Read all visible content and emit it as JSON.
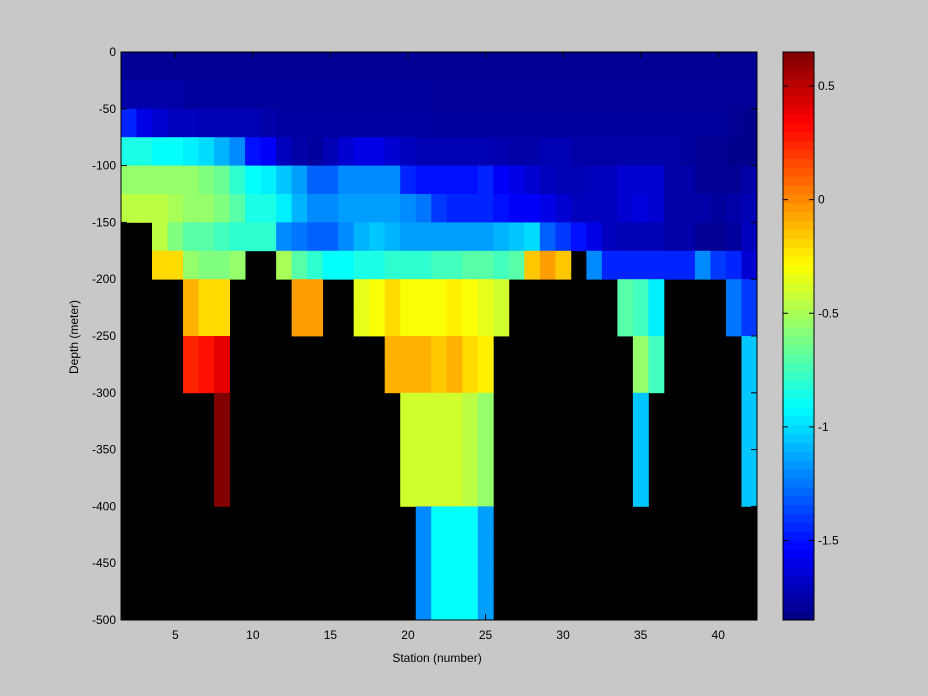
{
  "chart_data": {
    "type": "heatmap",
    "xlabel": "Station (number)",
    "ylabel": "Depth (meter)",
    "xlim": [
      1.5,
      42.5
    ],
    "ylim": [
      -500,
      0
    ],
    "x_ticks": [
      5,
      10,
      15,
      20,
      25,
      30,
      35,
      40
    ],
    "y_ticks": [
      0,
      -50,
      -100,
      -150,
      -200,
      -250,
      -300,
      -350,
      -400,
      -450,
      -500
    ],
    "colormap": "jet",
    "color_range": [
      -1.85,
      0.65
    ],
    "colorbar_ticks": [
      0.5,
      0,
      -0.5,
      -1,
      -1.5
    ],
    "background_color": "#000000",
    "stations_start": 2,
    "depth_bins": [
      0,
      -25,
      -50,
      -75,
      -100,
      -125,
      -150,
      -175,
      -200,
      -225,
      -250,
      -275,
      -300,
      -325,
      -350,
      -375,
      -400,
      -425,
      -450,
      -475
    ],
    "depth_bin_size": 25,
    "station_profiles": [
      {
        "station": 2,
        "values": [
          -1.8,
          -1.75,
          -1.45,
          -0.85,
          -0.55,
          -0.45
        ]
      },
      {
        "station": 3,
        "values": [
          -1.8,
          -1.75,
          -1.6,
          -0.85,
          -0.55,
          -0.45
        ]
      },
      {
        "station": 4,
        "values": [
          -1.8,
          -1.75,
          -1.65,
          -0.9,
          -0.55,
          -0.45,
          -0.45,
          -0.2
        ]
      },
      {
        "station": 5,
        "values": [
          -1.8,
          -1.75,
          -1.7,
          -0.9,
          -0.55,
          -0.5,
          -0.6,
          -0.2
        ]
      },
      {
        "station": 6,
        "values": [
          -1.8,
          -1.78,
          -1.7,
          -0.95,
          -0.55,
          -0.55,
          -0.7,
          -0.55,
          -0.1,
          -0.1,
          0.25,
          0.25
        ]
      },
      {
        "station": 7,
        "values": [
          -1.8,
          -1.78,
          -1.72,
          -1.0,
          -0.6,
          -0.55,
          -0.7,
          -0.6,
          -0.2,
          -0.2,
          0.3,
          0.3
        ]
      },
      {
        "station": 8,
        "values": [
          -1.8,
          -1.78,
          -1.72,
          -1.1,
          -0.65,
          -0.6,
          -0.75,
          -0.6,
          -0.2,
          -0.2,
          0.4,
          0.4,
          0.65,
          0.65,
          0.65,
          0.65
        ]
      },
      {
        "station": 9,
        "values": [
          -1.8,
          -1.78,
          -1.72,
          -1.2,
          -0.8,
          -0.7,
          -0.8,
          -0.55
        ]
      },
      {
        "station": 10,
        "values": [
          -1.8,
          -1.78,
          -1.72,
          -1.5,
          -0.9,
          -0.85,
          -0.8
        ]
      },
      {
        "station": 11,
        "values": [
          -1.8,
          -1.78,
          -1.75,
          -1.55,
          -0.95,
          -0.85,
          -0.8
        ]
      },
      {
        "station": 12,
        "values": [
          -1.8,
          -1.78,
          -1.77,
          -1.7,
          -1.05,
          -0.95,
          -1.2,
          -0.5
        ]
      },
      {
        "station": 13,
        "values": [
          -1.8,
          -1.78,
          -1.77,
          -1.75,
          -1.15,
          -1.1,
          -1.25,
          -0.7,
          -0.05,
          -0.05
        ]
      },
      {
        "station": 14,
        "values": [
          -1.8,
          -1.78,
          -1.77,
          -1.78,
          -1.3,
          -1.2,
          -1.3,
          -0.8,
          -0.05,
          -0.05
        ]
      },
      {
        "station": 15,
        "values": [
          -1.8,
          -1.78,
          -1.77,
          -1.72,
          -1.3,
          -1.2,
          -1.3,
          -0.9
        ]
      },
      {
        "station": 16,
        "values": [
          -1.8,
          -1.78,
          -1.77,
          -1.65,
          -1.2,
          -1.15,
          -1.2,
          -0.9
        ]
      },
      {
        "station": 17,
        "values": [
          -1.8,
          -1.78,
          -1.77,
          -1.6,
          -1.2,
          -1.15,
          -1.1,
          -0.85,
          -0.35,
          -0.35
        ]
      },
      {
        "station": 18,
        "values": [
          -1.8,
          -1.78,
          -1.77,
          -1.6,
          -1.2,
          -1.15,
          -1.05,
          -0.85,
          -0.3,
          -0.3
        ]
      },
      {
        "station": 19,
        "values": [
          -1.8,
          -1.78,
          -1.77,
          -1.65,
          -1.2,
          -1.15,
          -1.1,
          -0.8,
          -0.2,
          -0.2,
          -0.1,
          -0.1
        ]
      },
      {
        "station": 20,
        "values": [
          -1.8,
          -1.78,
          -1.77,
          -1.7,
          -1.45,
          -1.2,
          -1.15,
          -0.8,
          -0.3,
          -0.3,
          -0.1,
          -0.1,
          -0.4,
          -0.4,
          -0.4,
          -0.4
        ]
      },
      {
        "station": 21,
        "values": [
          -1.8,
          -1.78,
          -1.77,
          -1.72,
          -1.5,
          -1.25,
          -1.15,
          -0.8,
          -0.3,
          -0.3,
          -0.1,
          -0.1,
          -0.4,
          -0.4,
          -0.4,
          -0.4,
          -1.2,
          -1.2,
          -1.2,
          -1.2
        ]
      },
      {
        "station": 22,
        "values": [
          -1.8,
          -1.79,
          -1.78,
          -1.72,
          -1.5,
          -1.4,
          -1.15,
          -0.75,
          -0.3,
          -0.3,
          -0.15,
          -0.15,
          -0.4,
          -0.4,
          -0.4,
          -0.4,
          -0.9,
          -0.9,
          -0.9,
          -0.9
        ]
      },
      {
        "station": 23,
        "values": [
          -1.8,
          -1.79,
          -1.78,
          -1.72,
          -1.5,
          -1.45,
          -1.15,
          -0.75,
          -0.25,
          -0.25,
          -0.1,
          -0.1,
          -0.4,
          -0.4,
          -0.4,
          -0.4,
          -0.9,
          -0.9,
          -0.9,
          -0.9
        ]
      },
      {
        "station": 24,
        "values": [
          -1.8,
          -1.79,
          -1.78,
          -1.72,
          -1.5,
          -1.45,
          -1.15,
          -0.7,
          -0.3,
          -0.3,
          -0.2,
          -0.2,
          -0.45,
          -0.45,
          -0.45,
          -0.45,
          -0.9,
          -0.9,
          -0.9,
          -0.9
        ]
      },
      {
        "station": 25,
        "values": [
          -1.8,
          -1.79,
          -1.78,
          -1.72,
          -1.45,
          -1.45,
          -1.15,
          -0.7,
          -0.35,
          -0.35,
          -0.25,
          -0.25,
          -0.55,
          -0.55,
          -0.55,
          -0.55,
          -1.15,
          -1.15,
          -1.15,
          -1.15
        ]
      },
      {
        "station": 26,
        "values": [
          -1.8,
          -1.79,
          -1.78,
          -1.73,
          -1.55,
          -1.5,
          -1.1,
          -0.75,
          -0.4,
          -0.4
        ]
      },
      {
        "station": 27,
        "values": [
          -1.8,
          -1.79,
          -1.78,
          -1.75,
          -1.6,
          -1.55,
          -1.05,
          -0.7
        ]
      },
      {
        "station": 28,
        "values": [
          -1.8,
          -1.79,
          -1.78,
          -1.75,
          -1.65,
          -1.55,
          -1.0,
          -0.15
        ]
      },
      {
        "station": 29,
        "values": [
          -1.8,
          -1.79,
          -1.78,
          -1.72,
          -1.7,
          -1.6,
          -1.3,
          -0.05
        ]
      },
      {
        "station": 30,
        "values": [
          -1.8,
          -1.79,
          -1.78,
          -1.72,
          -1.72,
          -1.65,
          -1.4,
          -0.15
        ]
      },
      {
        "station": 31,
        "values": [
          -1.8,
          -1.79,
          -1.78,
          -1.75,
          -1.72,
          -1.7,
          -1.5
        ]
      },
      {
        "station": 32,
        "values": [
          -1.8,
          -1.79,
          -1.78,
          -1.75,
          -1.7,
          -1.7,
          -1.6,
          -1.2
        ]
      },
      {
        "station": 33,
        "values": [
          -1.8,
          -1.79,
          -1.78,
          -1.75,
          -1.7,
          -1.7,
          -1.7,
          -1.45
        ]
      },
      {
        "station": 34,
        "values": [
          -1.8,
          -1.79,
          -1.78,
          -1.75,
          -1.65,
          -1.65,
          -1.72,
          -1.45,
          -0.7,
          -0.7
        ]
      },
      {
        "station": 35,
        "values": [
          -1.8,
          -1.79,
          -1.78,
          -1.75,
          -1.65,
          -1.62,
          -1.72,
          -1.45,
          -0.75,
          -0.75,
          -0.55,
          -0.55,
          -1.05,
          -1.05,
          -1.05,
          -1.05
        ]
      },
      {
        "station": 36,
        "values": [
          -1.8,
          -1.79,
          -1.78,
          -1.75,
          -1.65,
          -1.65,
          -1.72,
          -1.45,
          -0.95,
          -0.95,
          -0.75,
          -0.75
        ]
      },
      {
        "station": 37,
        "values": [
          -1.8,
          -1.79,
          -1.78,
          -1.75,
          -1.75,
          -1.75,
          -1.75,
          -1.45
        ]
      },
      {
        "station": 38,
        "values": [
          -1.8,
          -1.79,
          -1.78,
          -1.78,
          -1.75,
          -1.75,
          -1.75,
          -1.45
        ]
      },
      {
        "station": 39,
        "values": [
          -1.8,
          -1.79,
          -1.78,
          -1.8,
          -1.8,
          -1.75,
          -1.8,
          -1.2
        ]
      },
      {
        "station": 40,
        "values": [
          -1.8,
          -1.79,
          -1.78,
          -1.8,
          -1.8,
          -1.78,
          -1.8,
          -1.4
        ]
      },
      {
        "station": 41,
        "values": [
          -1.8,
          -1.79,
          -1.8,
          -1.82,
          -1.8,
          -1.75,
          -1.78,
          -1.45,
          -1.25,
          -1.25
        ]
      },
      {
        "station": 42,
        "values": [
          -1.8,
          -1.79,
          -1.82,
          -1.82,
          -1.75,
          -1.72,
          -1.7,
          -1.65,
          -1.4,
          -1.4,
          -1.05,
          -1.05,
          -1.05,
          -1.05,
          -1.05,
          -1.05
        ]
      }
    ]
  }
}
